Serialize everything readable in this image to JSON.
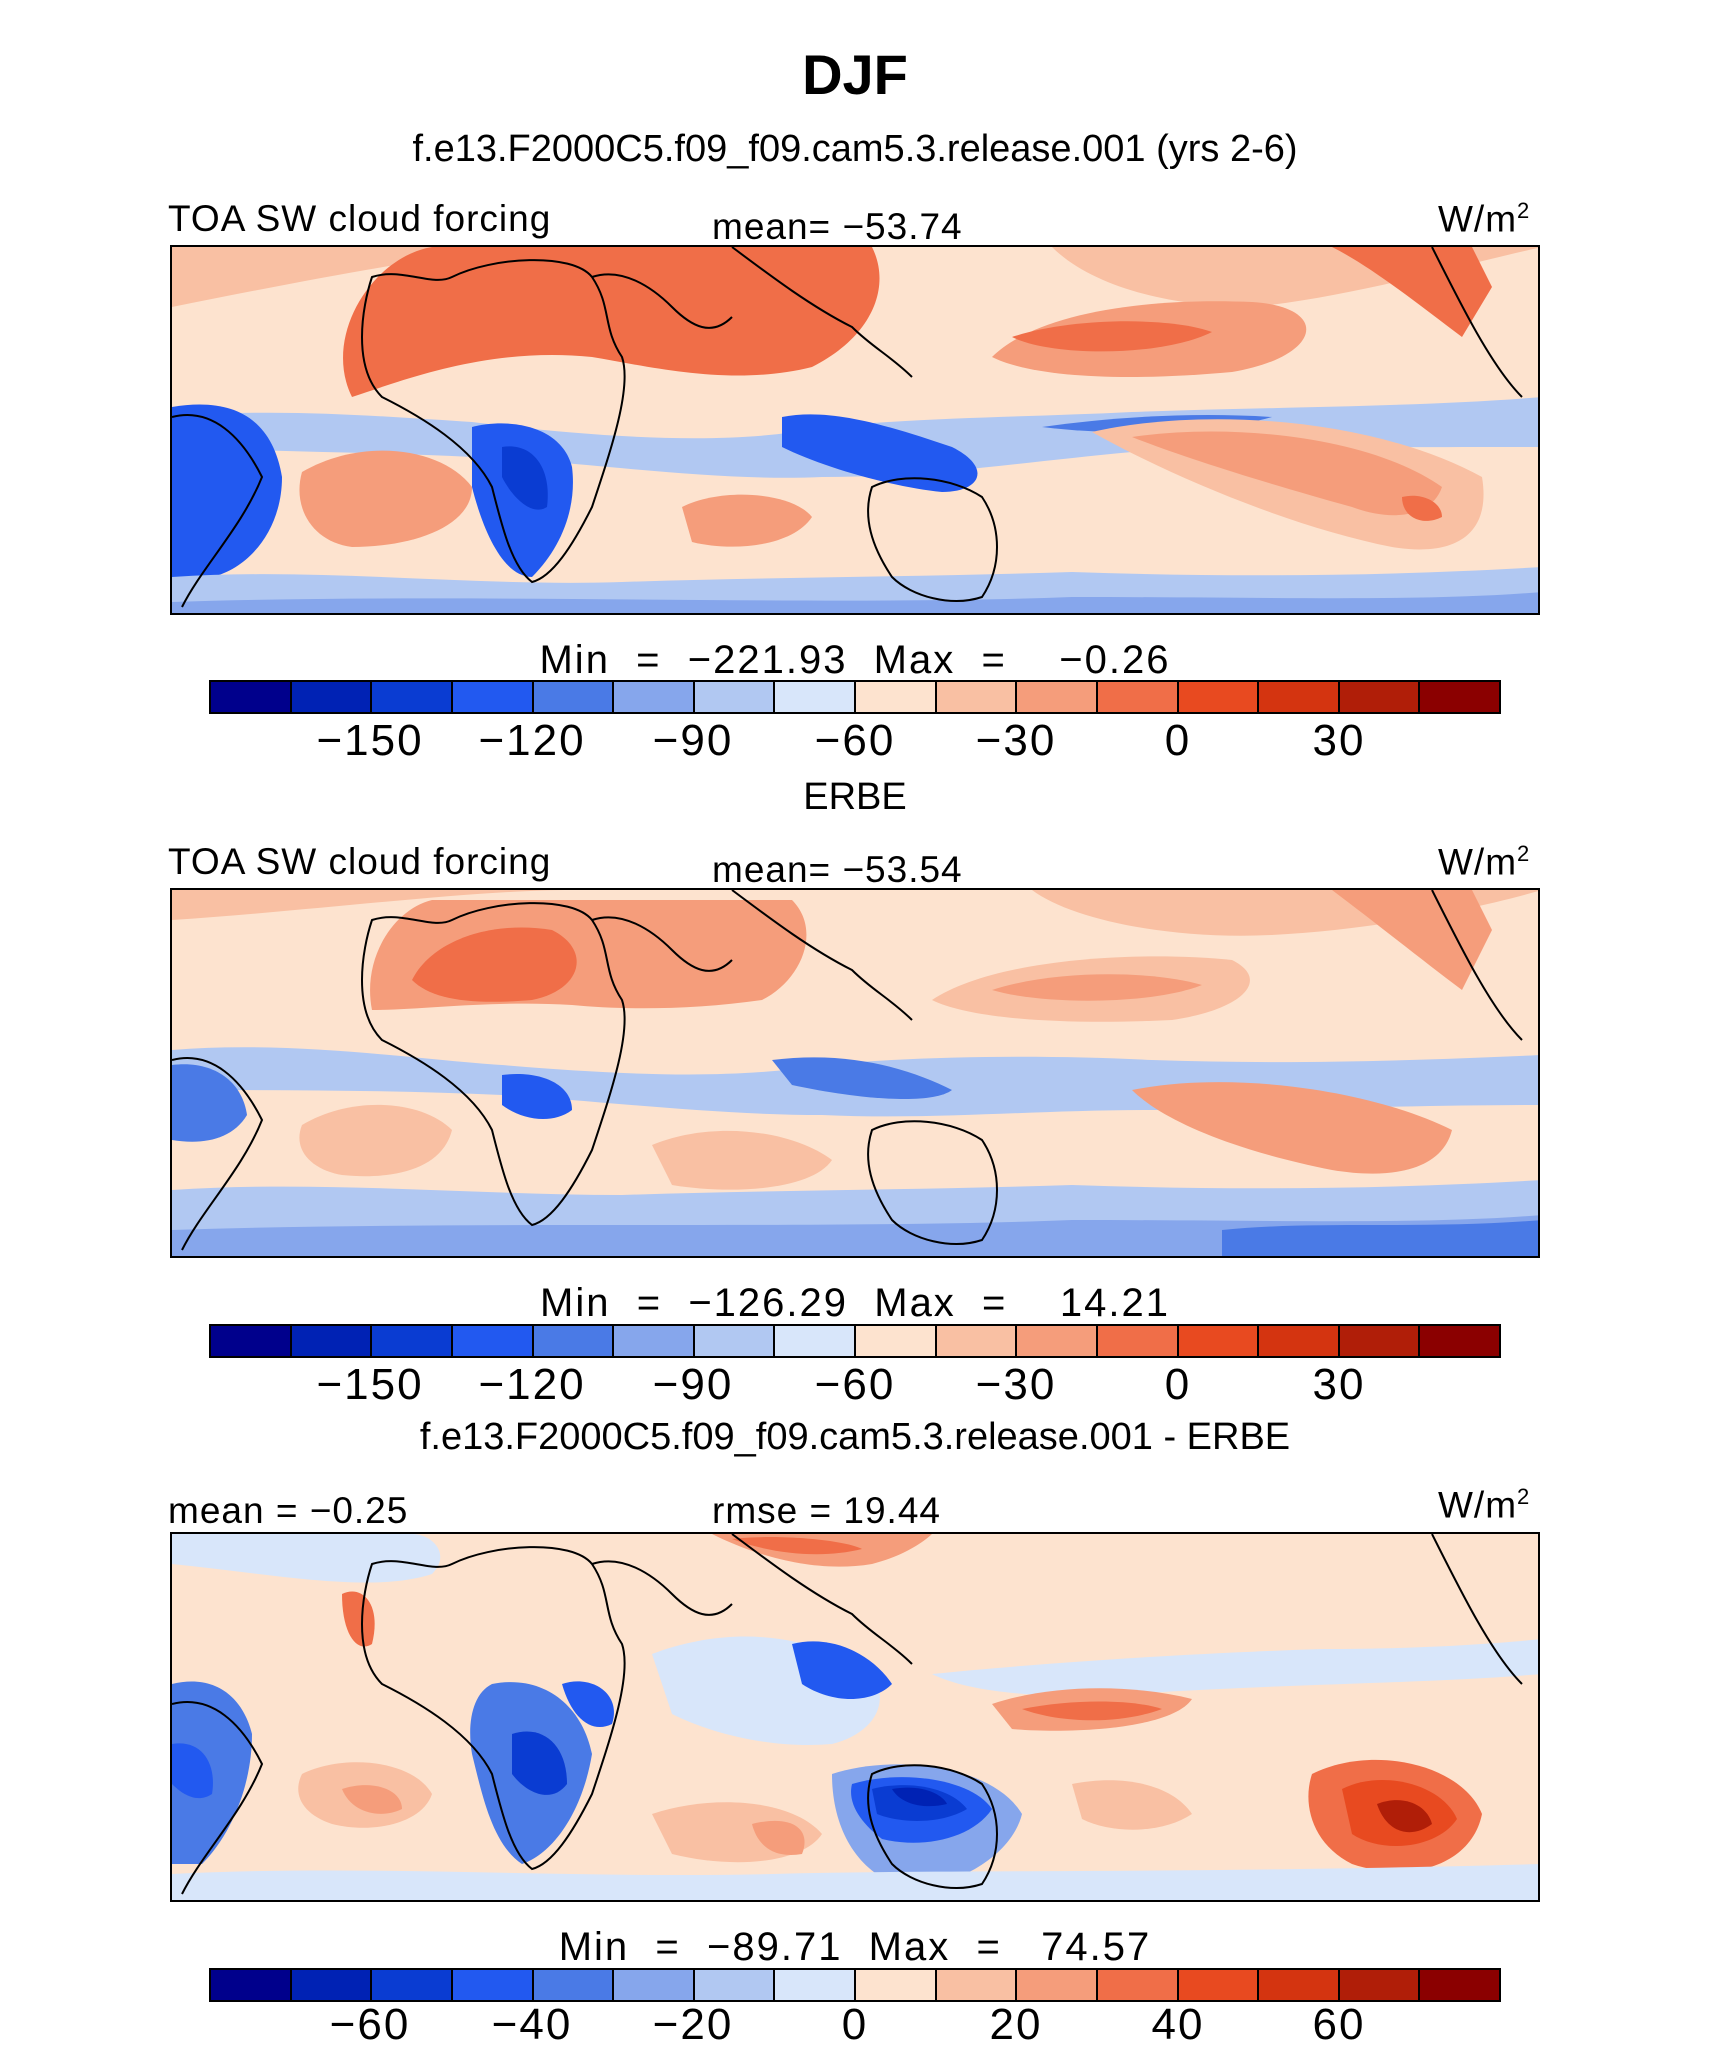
{
  "title": "DJF",
  "panels": [
    {
      "name": "model",
      "heading": "f.e13.F2000C5.f09_f09.cam5.3.release.001 (yrs 2-6)",
      "left_label": "TOA SW cloud forcing",
      "center_label": "mean= −53.74",
      "units": "W/m",
      "units_exp": "2",
      "min_max": "Min  =  −221.93  Max  =    −0.26",
      "colorbar_ticks": [
        "−150",
        "−120",
        "−90",
        "−60",
        "−30",
        "0",
        "30"
      ]
    },
    {
      "name": "obs",
      "heading": "ERBE",
      "left_label": "TOA SW cloud forcing",
      "center_label": "mean= −53.54",
      "units": "W/m",
      "units_exp": "2",
      "min_max": "Min  =  −126.29  Max  =    14.21",
      "colorbar_ticks": [
        "−150",
        "−120",
        "−90",
        "−60",
        "−30",
        "0",
        "30"
      ]
    },
    {
      "name": "difference",
      "heading": "f.e13.F2000C5.f09_f09.cam5.3.release.001 - ERBE",
      "left_label": "mean  =   −0.25",
      "center_label": "rmse  =   19.44",
      "units": "W/m",
      "units_exp": "2",
      "min_max": "Min  =  −89.71  Max  =   74.57",
      "colorbar_ticks": [
        "−60",
        "−40",
        "−20",
        "0",
        "20",
        "40",
        "60"
      ]
    }
  ],
  "colors": {
    "palette": [
      "#00008c",
      "#0022b4",
      "#0a3cd2",
      "#2259f0",
      "#4a7ae6",
      "#86a6ec",
      "#b1c8f2",
      "#d8e6fa",
      "#fde3cf",
      "#f9c0a3",
      "#f59d7b",
      "#f06e48",
      "#e84a20",
      "#d43410",
      "#b01e08",
      "#8b0000"
    ]
  }
}
